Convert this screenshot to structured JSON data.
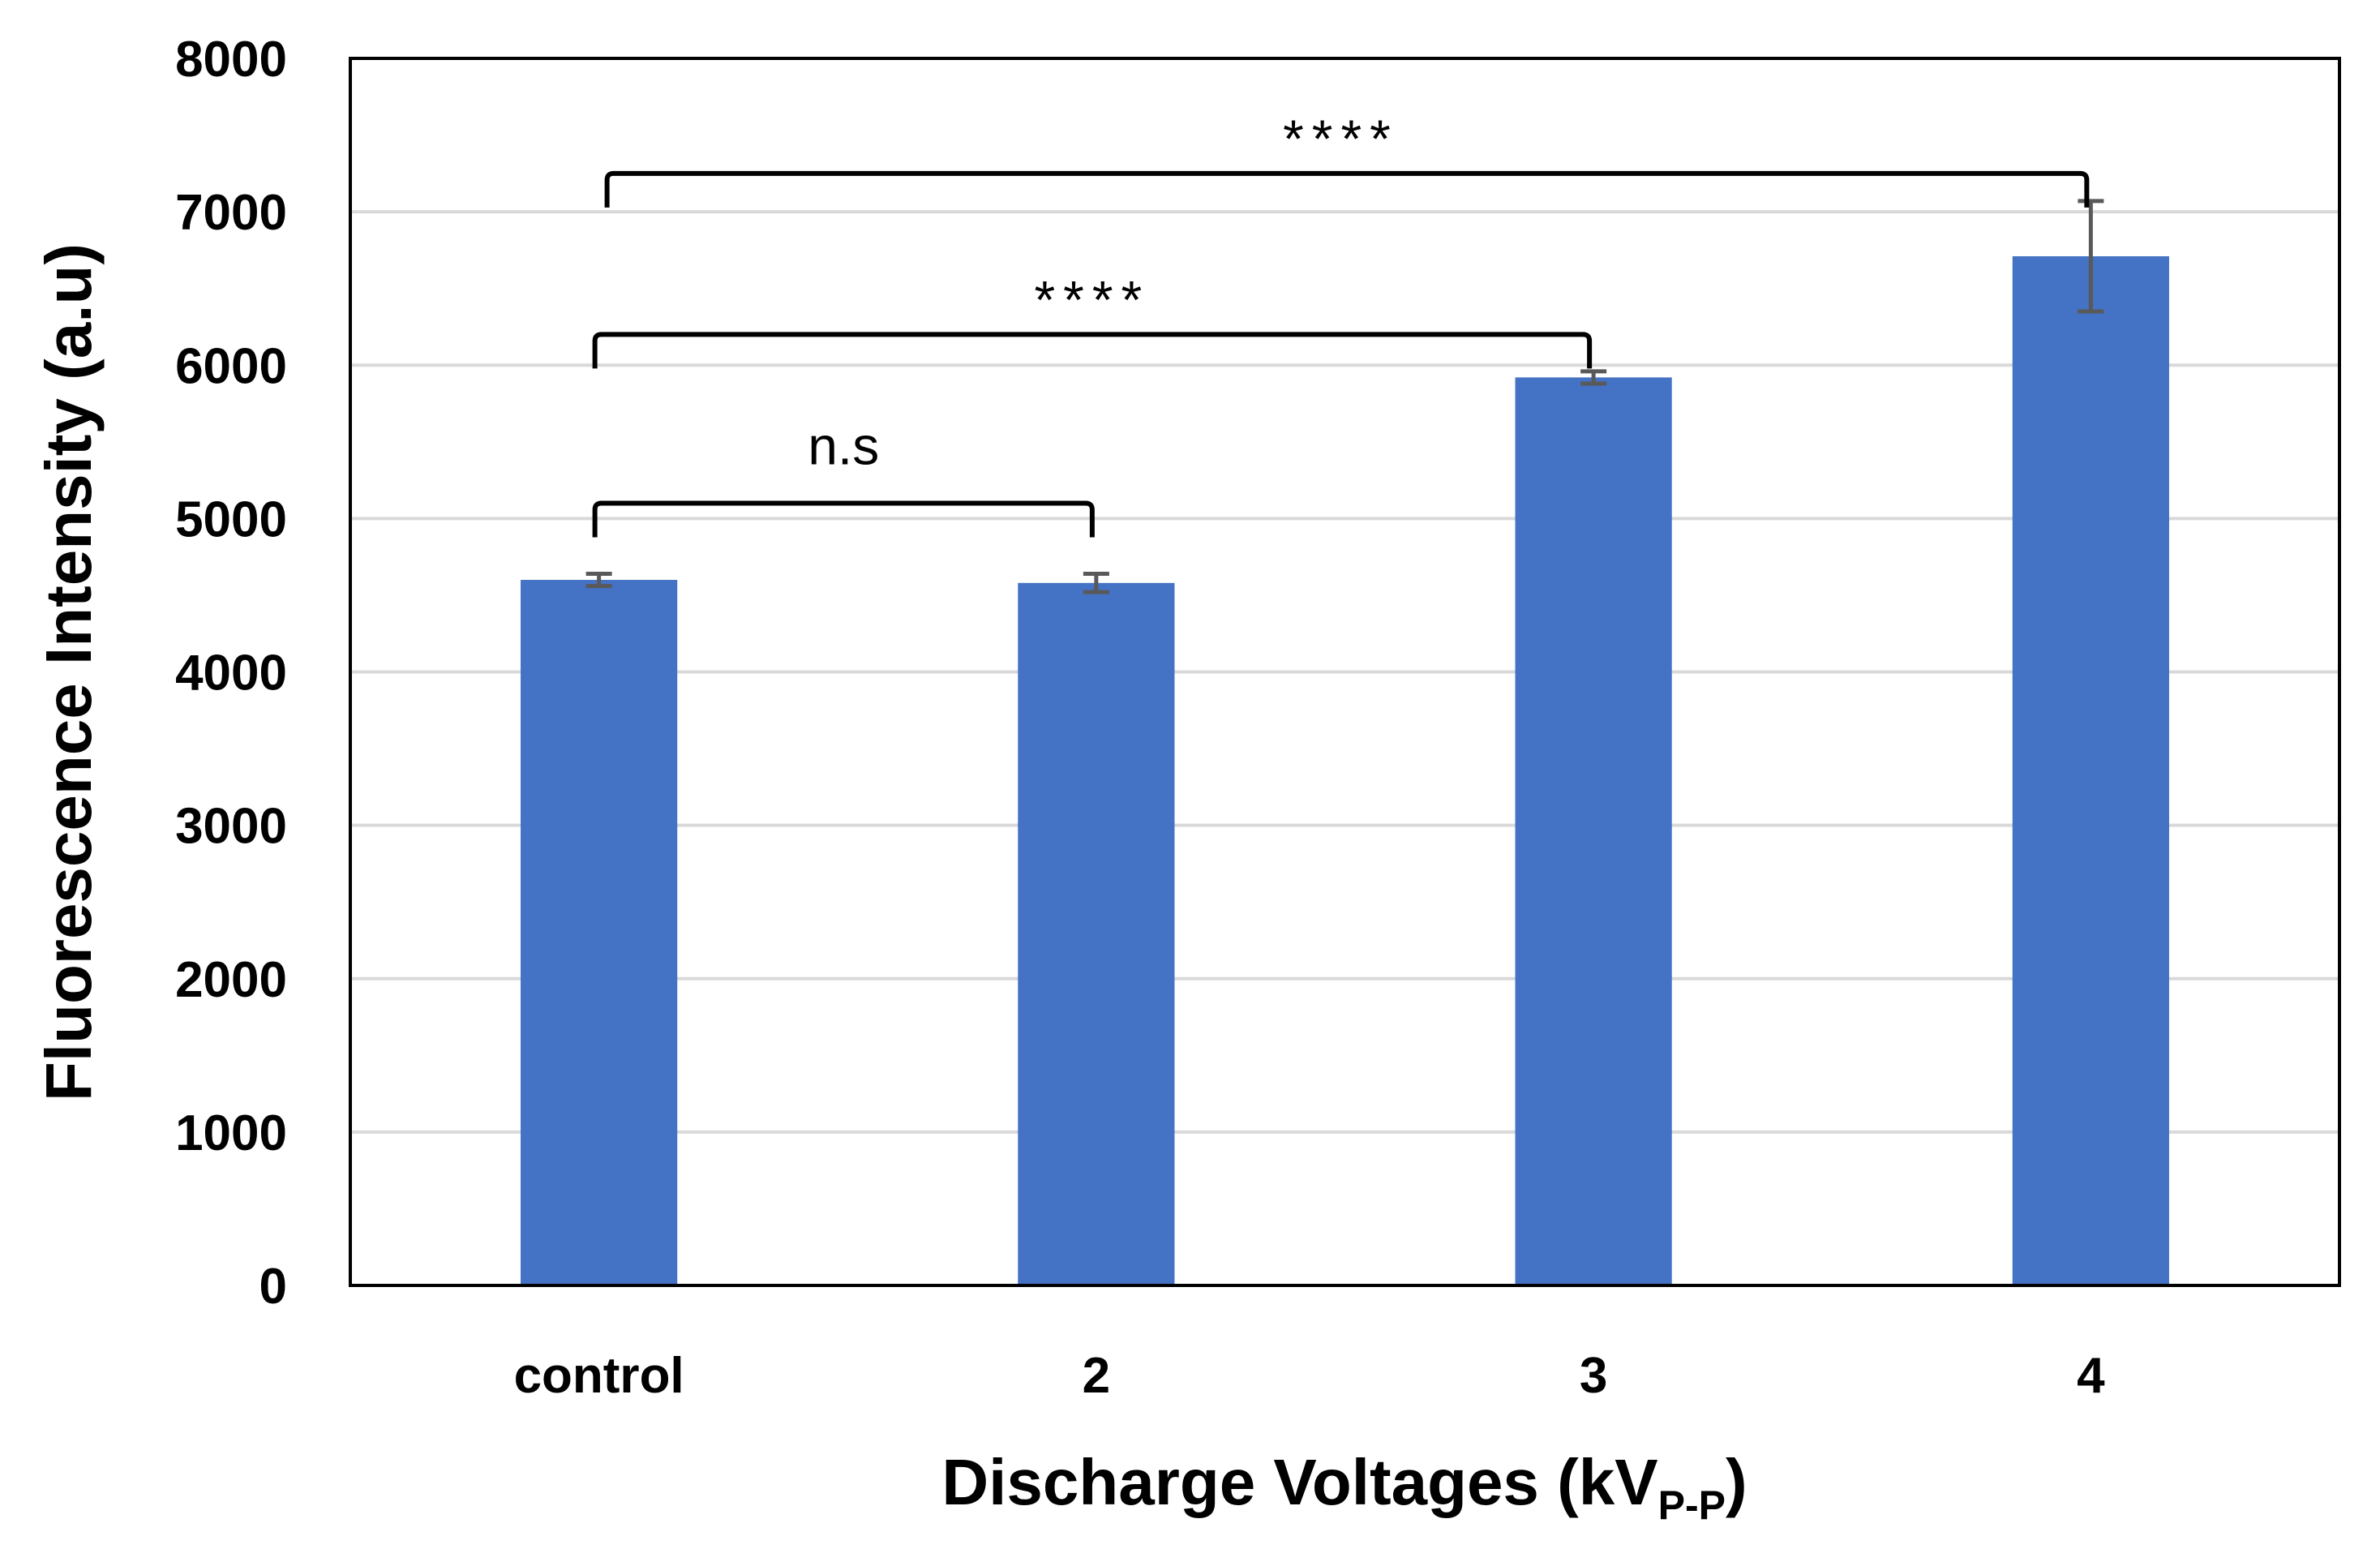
{
  "chart_data": {
    "type": "bar",
    "title": "",
    "xlabel": "Discharge Voltages (kV",
    "xlabel_subscript": "P-P",
    "xlabel_suffix": ")",
    "ylabel": "Fluorescence Intensity (a.u)",
    "ylim": [
      0,
      8000
    ],
    "yticks": [
      "0",
      "1000",
      "2000",
      "3000",
      "4000",
      "5000",
      "6000",
      "7000",
      "8000"
    ],
    "grid": true,
    "categories": [
      "control",
      "2",
      "3",
      "4"
    ],
    "values": [
      4600,
      4580,
      5920,
      6710
    ],
    "errors": [
      40,
      60,
      40,
      360
    ],
    "colors": {
      "bar": "#4472C4",
      "gridline": "#D9D9D9",
      "error_bar": "#595959",
      "frame": "#000000"
    },
    "significance": [
      {
        "from": 0,
        "to": 1,
        "label": "n.s",
        "y": 5100
      },
      {
        "from": 0,
        "to": 2,
        "label": "****",
        "y": 6200
      },
      {
        "from": 0,
        "to": 3,
        "label": "****",
        "y": 7250
      }
    ]
  }
}
